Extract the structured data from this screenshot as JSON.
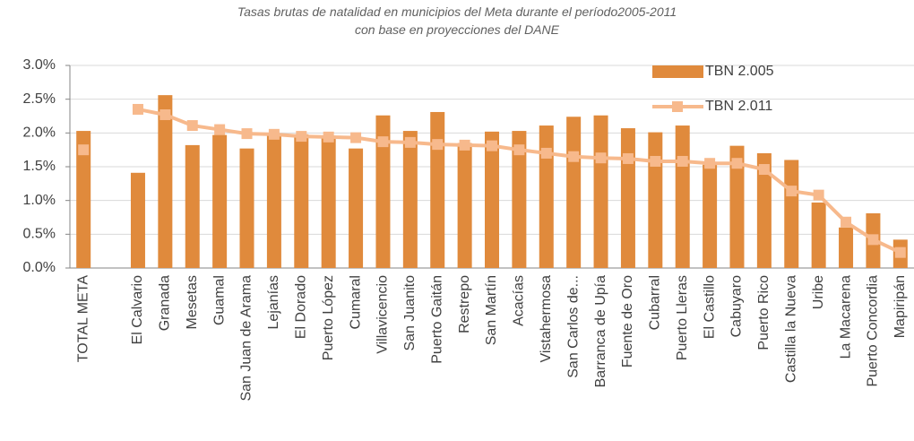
{
  "chart_data": {
    "type": "bar",
    "title": "Tasas brutas de natalidad en municipios del Meta durante el período2005-2011",
    "subtitle": "con base en proyecciones del DANE",
    "categories": [
      "TOTAL META",
      null,
      "El Calvario",
      "Granada",
      "Mesetas",
      "Guamal",
      "San Juan de Arama",
      "Lejanías",
      "El Dorado",
      "Puerto López",
      "Cumaral",
      "Villavicencio",
      "San Juanito",
      "Puerto Gaitán",
      "Restrepo",
      "San Martín",
      "Acacías",
      "Vistahermosa",
      "San Carlos de...",
      "Barranca de Upía",
      "Fuente de Oro",
      "Cubarral",
      "Puerto Lleras",
      "El Castillo",
      "Cabuyaro",
      "Puerto Rico",
      "Castilla la Nueva",
      "Uribe",
      "La Macarena",
      "Puerto Concordia",
      "Mapiripán"
    ],
    "series": [
      {
        "name": "TBN 2.005",
        "type": "bar",
        "color": "#e08a3c",
        "values": [
          2.03,
          null,
          1.41,
          2.56,
          1.82,
          1.97,
          1.77,
          1.98,
          1.98,
          1.95,
          1.77,
          2.26,
          2.03,
          2.31,
          1.85,
          2.02,
          2.03,
          2.11,
          2.24,
          2.26,
          2.07,
          2.01,
          2.11,
          1.53,
          1.81,
          1.7,
          1.6,
          0.97,
          0.6,
          0.81,
          0.42
        ]
      },
      {
        "name": "TBN 2.011",
        "type": "line",
        "color": "#f7b98c",
        "values": [
          1.75,
          null,
          2.35,
          2.27,
          2.11,
          2.05,
          1.99,
          1.98,
          1.95,
          1.94,
          1.93,
          1.87,
          1.86,
          1.83,
          1.82,
          1.81,
          1.75,
          1.7,
          1.65,
          1.63,
          1.62,
          1.58,
          1.58,
          1.55,
          1.55,
          1.46,
          1.14,
          1.08,
          0.68,
          0.42,
          0.23
        ]
      }
    ],
    "ylim": [
      0,
      3
    ],
    "yticks": [
      {
        "value": 0,
        "label": "0.0%"
      },
      {
        "value": 0.5,
        "label": "0.5%"
      },
      {
        "value": 1,
        "label": "1.0%"
      },
      {
        "value": 1.5,
        "label": "1.5%"
      },
      {
        "value": 2,
        "label": "2.0%"
      },
      {
        "value": 2.5,
        "label": "2.5%"
      },
      {
        "value": 3,
        "label": "3.0%"
      }
    ],
    "grid": true,
    "legend": "upper right"
  }
}
